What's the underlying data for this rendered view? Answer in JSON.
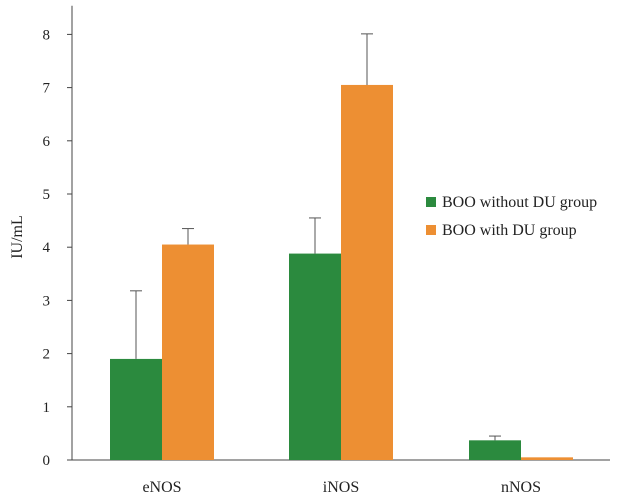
{
  "chart_data": {
    "type": "bar",
    "title": "",
    "xlabel": "",
    "ylabel": "IU/mL",
    "ylim": [
      0,
      8.5
    ],
    "yticks": [
      0,
      1,
      2,
      3,
      4,
      5,
      6,
      7,
      8
    ],
    "grid": false,
    "legend_position": "right",
    "categories": [
      "eNOS",
      "iNOS",
      "nNOS"
    ],
    "series": [
      {
        "name": "BOO without DU group",
        "color": "#2b8a3e",
        "values": [
          1.9,
          3.88,
          0.37
        ],
        "errors": [
          1.28,
          0.67,
          0.08
        ]
      },
      {
        "name": "BOO with DU group",
        "color": "#ed8f33",
        "values": [
          4.05,
          7.05,
          0.05
        ],
        "errors": [
          0.3,
          0.96,
          0.0
        ]
      }
    ]
  }
}
